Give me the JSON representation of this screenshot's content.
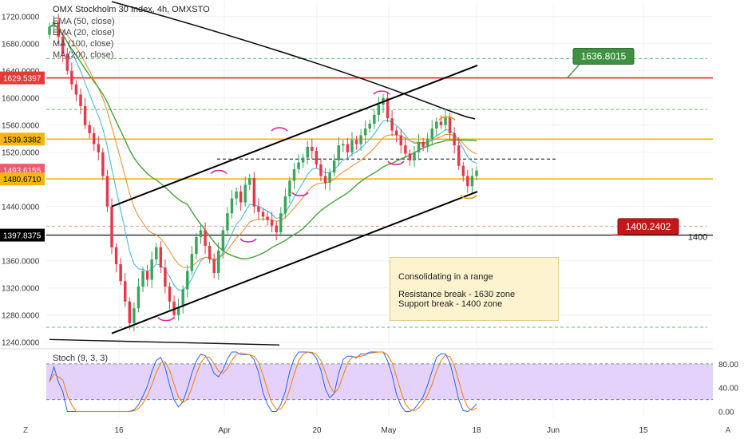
{
  "chart_data": [
    {
      "type": "candlestick",
      "title": "OMX Stockholm 30 Index, 4h, OMXSTO",
      "indicators": [
        "EMA (50, close)",
        "EMA (20, close)",
        "MA (100, close)",
        "MA (200, close)"
      ],
      "y_ticks": [
        "1720.0000",
        "1680.0000",
        "1640.0000",
        "1600.0000",
        "1560.0000",
        "1520.0000",
        "1480.0000",
        "1440.0000",
        "1400.0000",
        "1360.0000",
        "1320.0000",
        "1280.0000",
        "1240.0000"
      ],
      "ylim": [
        1235,
        1742
      ],
      "x_ticks": [
        "16",
        "Apr",
        "20",
        "May",
        "18",
        "Jun",
        "15"
      ],
      "price_tags": [
        {
          "label": "1629.5397",
          "value": 1629.5397,
          "color": "#e53935"
        },
        {
          "label": "1539.3382",
          "value": 1539.3382,
          "color": "#f5b50a"
        },
        {
          "label": "1493.6155",
          "value": 1493.6155,
          "color": "#f05a6e"
        },
        {
          "label": "1480.6710",
          "value": 1480.671,
          "color": "#f5b50a"
        },
        {
          "label": "1397.8375",
          "value": 1397.8375,
          "color": "#000000"
        }
      ],
      "callouts": [
        {
          "label": "1636.8015",
          "color": "#3d9140"
        },
        {
          "label": "1400.2402",
          "color": "#c31818"
        }
      ],
      "level_label": "1400",
      "note": {
        "title": "Consolidating in a range",
        "line1": "Resistance break - 1630 zone",
        "line2": "Support break - 1400 zone"
      },
      "closes": [
        1705,
        1712,
        1690,
        1665,
        1640,
        1620,
        1605,
        1588,
        1560,
        1548,
        1532,
        1520,
        1485,
        1440,
        1380,
        1355,
        1330,
        1300,
        1268,
        1290,
        1322,
        1345,
        1332,
        1362,
        1380,
        1350,
        1322,
        1300,
        1280,
        1292,
        1318,
        1345,
        1370,
        1395,
        1405,
        1382,
        1362,
        1342,
        1375,
        1405,
        1430,
        1452,
        1462,
        1446,
        1472,
        1482,
        1440,
        1432,
        1425,
        1420,
        1412,
        1402,
        1430,
        1455,
        1478,
        1495,
        1505,
        1512,
        1528,
        1522,
        1502,
        1485,
        1475,
        1490,
        1508,
        1530,
        1532,
        1520,
        1538,
        1532,
        1545,
        1555,
        1562,
        1575,
        1590,
        1600,
        1570,
        1552,
        1545,
        1530,
        1518,
        1508,
        1520,
        1535,
        1528,
        1540,
        1555,
        1565,
        1560,
        1572,
        1548,
        1530,
        1500,
        1485,
        1470,
        1485,
        1493
      ],
      "stochastic": {
        "label": "Stoch (9, 3, 3)",
        "y_ticks": [
          "80.00",
          "40.00",
          "0.00"
        ],
        "ylim": [
          -10,
          100
        ],
        "upper_band": 80,
        "lower_band": 20
      }
    }
  ],
  "footer": {
    "goto_icon": "Z",
    "auto_label": "A"
  }
}
